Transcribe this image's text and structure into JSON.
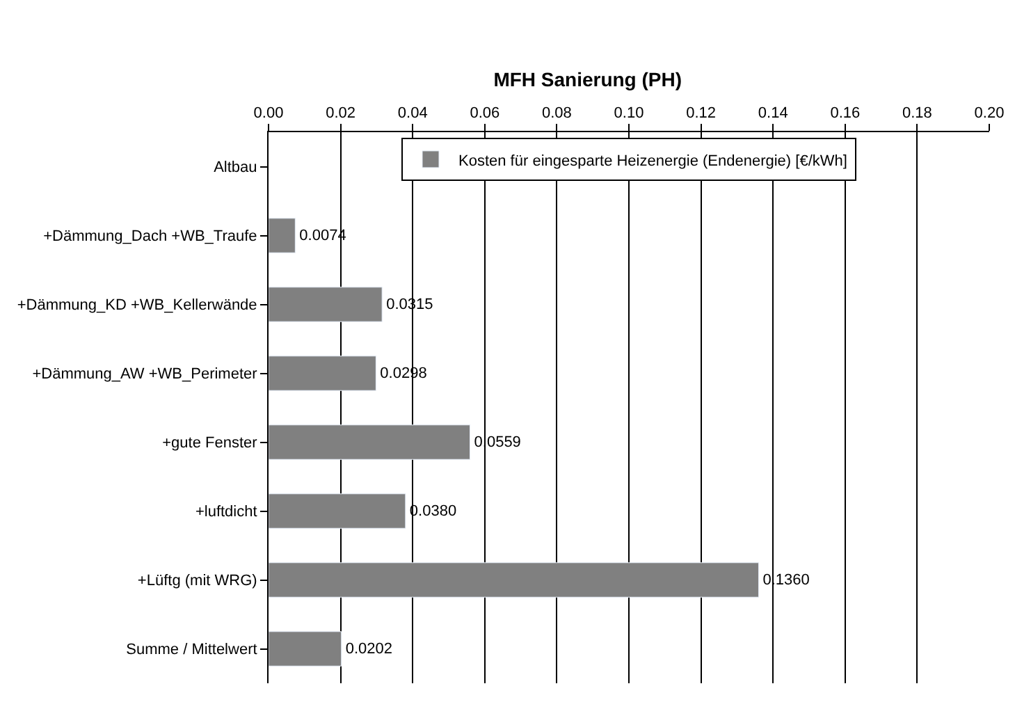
{
  "chart_data": {
    "type": "bar",
    "orientation": "horizontal",
    "title": "MFH Sanierung (PH)",
    "categories": [
      "Altbau",
      "+Dämmung_Dach +WB_Traufe",
      "+Dämmung_KD +WB_Kellerwände",
      "+Dämmung_AW +WB_Perimeter",
      "+gute Fenster",
      "+luftdicht",
      "+Lüftg (mit WRG)",
      "Summe / Mittelwert"
    ],
    "series": [
      {
        "name": "Kosten für eingesparte Heizenergie (Endenergie) [€/kWh]",
        "color": "#808080",
        "values": [
          null,
          0.0074,
          0.0315,
          0.0298,
          0.0559,
          0.038,
          0.136,
          0.0202
        ],
        "value_labels": [
          null,
          "0.0074",
          "0.0315",
          "0.0298",
          "0.0559",
          "0.0380",
          "0.1360",
          "0.0202"
        ]
      }
    ],
    "xlim": [
      0,
      0.2
    ],
    "xticks": [
      {
        "value": 0,
        "label": "0.00"
      },
      {
        "value": 0.02,
        "label": "0.02"
      },
      {
        "value": 0.04,
        "label": "0.04"
      },
      {
        "value": 0.06,
        "label": "0.06"
      },
      {
        "value": 0.08,
        "label": "0.08"
      },
      {
        "value": 0.1,
        "label": "0.10"
      },
      {
        "value": 0.12,
        "label": "0.12"
      },
      {
        "value": 0.14,
        "label": "0.14"
      },
      {
        "value": 0.16,
        "label": "0.16"
      },
      {
        "value": 0.18,
        "label": "0.18"
      },
      {
        "value": 0.2,
        "label": "0.20"
      }
    ],
    "grid": "x",
    "legend": "top"
  }
}
